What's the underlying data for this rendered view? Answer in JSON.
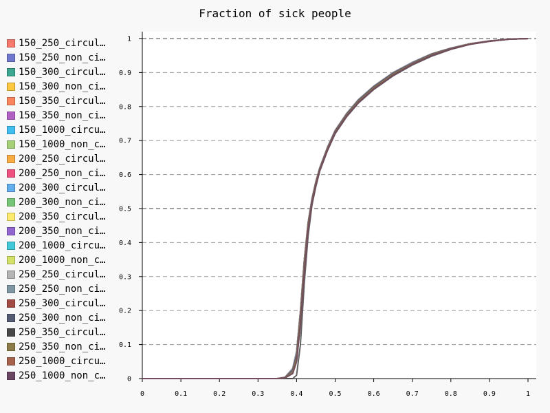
{
  "chart_data": {
    "type": "line",
    "title": "Fraction of sick people",
    "xlabel": "",
    "ylabel": "",
    "xlim": [
      0,
      1
    ],
    "ylim": [
      0,
      1
    ],
    "x_ticks": [
      "0",
      "0.1",
      "0.2",
      "0.3",
      "0.4",
      "0.5",
      "0.6",
      "0.7",
      "0.8",
      "0.9",
      "1"
    ],
    "y_ticks": [
      "0",
      "0.1",
      "0.2",
      "0.3",
      "0.4",
      "0.5",
      "0.6",
      "0.7",
      "0.8",
      "0.9",
      "1"
    ],
    "grid": "horizontal-dashed",
    "legend_position": "left",
    "x": [
      0,
      0.1,
      0.2,
      0.3,
      0.35,
      0.37,
      0.39,
      0.4,
      0.41,
      0.42,
      0.43,
      0.44,
      0.45,
      0.46,
      0.48,
      0.5,
      0.53,
      0.56,
      0.6,
      0.65,
      0.7,
      0.75,
      0.8,
      0.85,
      0.9,
      0.95,
      1.0
    ],
    "series": [
      {
        "name": "150_250_circul…",
        "color": "#f8796d",
        "values": [
          0,
          0,
          0,
          0,
          0,
          0.004,
          0.03,
          0.08,
          0.2,
          0.35,
          0.46,
          0.53,
          0.58,
          0.62,
          0.68,
          0.73,
          0.78,
          0.82,
          0.86,
          0.9,
          0.93,
          0.955,
          0.972,
          0.985,
          0.993,
          0.998,
          1
        ]
      },
      {
        "name": "150_250_non_ci…",
        "color": "#7078ce",
        "values": [
          0,
          0,
          0,
          0,
          0,
          0.004,
          0.03,
          0.08,
          0.2,
          0.35,
          0.46,
          0.53,
          0.58,
          0.62,
          0.68,
          0.73,
          0.78,
          0.82,
          0.86,
          0.9,
          0.93,
          0.955,
          0.972,
          0.985,
          0.993,
          0.998,
          1
        ]
      },
      {
        "name": "150_300_circul…",
        "color": "#3ca690",
        "values": [
          0,
          0,
          0,
          0,
          0,
          0.003,
          0.025,
          0.07,
          0.19,
          0.34,
          0.455,
          0.525,
          0.578,
          0.618,
          0.678,
          0.728,
          0.778,
          0.818,
          0.858,
          0.898,
          0.928,
          0.954,
          0.971,
          0.984,
          0.993,
          0.998,
          1
        ]
      },
      {
        "name": "150_300_non_ci…",
        "color": "#fdc93f",
        "values": [
          0,
          0,
          0,
          0,
          0,
          0.003,
          0.025,
          0.07,
          0.19,
          0.34,
          0.455,
          0.525,
          0.578,
          0.618,
          0.678,
          0.728,
          0.778,
          0.818,
          0.858,
          0.898,
          0.928,
          0.954,
          0.971,
          0.984,
          0.993,
          0.998,
          1
        ]
      },
      {
        "name": "150_350_circul…",
        "color": "#fd855e",
        "values": [
          0,
          0,
          0,
          0,
          0,
          0.003,
          0.02,
          0.06,
          0.18,
          0.33,
          0.45,
          0.52,
          0.575,
          0.615,
          0.675,
          0.725,
          0.775,
          0.815,
          0.855,
          0.895,
          0.926,
          0.952,
          0.97,
          0.984,
          0.992,
          0.998,
          1
        ]
      },
      {
        "name": "150_350_non_ci…",
        "color": "#b25fc4",
        "values": [
          0,
          0,
          0,
          0,
          0,
          0.003,
          0.02,
          0.06,
          0.18,
          0.33,
          0.45,
          0.52,
          0.575,
          0.615,
          0.675,
          0.725,
          0.775,
          0.815,
          0.855,
          0.895,
          0.926,
          0.952,
          0.97,
          0.984,
          0.992,
          0.998,
          1
        ]
      },
      {
        "name": "150_1000_circu…",
        "color": "#41bef1",
        "values": [
          0,
          0,
          0,
          0,
          0,
          0.002,
          0.015,
          0.05,
          0.16,
          0.31,
          0.44,
          0.515,
          0.57,
          0.612,
          0.672,
          0.722,
          0.772,
          0.812,
          0.852,
          0.892,
          0.924,
          0.95,
          0.969,
          0.983,
          0.992,
          0.998,
          1
        ]
      },
      {
        "name": "150_1000_non_c…",
        "color": "#a4d176",
        "values": [
          0,
          0,
          0,
          0,
          0,
          0.002,
          0.015,
          0.05,
          0.16,
          0.31,
          0.44,
          0.515,
          0.57,
          0.612,
          0.672,
          0.722,
          0.772,
          0.812,
          0.852,
          0.892,
          0.924,
          0.95,
          0.969,
          0.983,
          0.992,
          0.998,
          1
        ]
      },
      {
        "name": "200_250_circul…",
        "color": "#fbad44",
        "values": [
          0,
          0,
          0,
          0,
          0,
          0.004,
          0.03,
          0.08,
          0.2,
          0.35,
          0.46,
          0.53,
          0.58,
          0.62,
          0.68,
          0.73,
          0.78,
          0.82,
          0.86,
          0.9,
          0.93,
          0.955,
          0.972,
          0.985,
          0.993,
          0.998,
          1
        ]
      },
      {
        "name": "200_250_non_ci…",
        "color": "#ef5281",
        "values": [
          0,
          0,
          0,
          0,
          0,
          0.004,
          0.03,
          0.08,
          0.2,
          0.35,
          0.46,
          0.53,
          0.58,
          0.62,
          0.68,
          0.73,
          0.78,
          0.82,
          0.86,
          0.9,
          0.93,
          0.955,
          0.972,
          0.985,
          0.993,
          0.998,
          1
        ]
      },
      {
        "name": "200_300_circul…",
        "color": "#64adef",
        "values": [
          0,
          0,
          0,
          0,
          0,
          0.003,
          0.025,
          0.07,
          0.19,
          0.34,
          0.455,
          0.525,
          0.578,
          0.618,
          0.678,
          0.728,
          0.778,
          0.818,
          0.858,
          0.898,
          0.928,
          0.954,
          0.971,
          0.984,
          0.993,
          0.998,
          1
        ]
      },
      {
        "name": "200_300_non_ci…",
        "color": "#76c477",
        "values": [
          0,
          0,
          0,
          0,
          0,
          0.003,
          0.025,
          0.07,
          0.19,
          0.34,
          0.455,
          0.525,
          0.578,
          0.618,
          0.678,
          0.728,
          0.778,
          0.818,
          0.858,
          0.898,
          0.928,
          0.954,
          0.971,
          0.984,
          0.993,
          0.998,
          1
        ]
      },
      {
        "name": "200_350_circul…",
        "color": "#feeb6e",
        "values": [
          0,
          0,
          0,
          0,
          0,
          0.003,
          0.02,
          0.06,
          0.18,
          0.33,
          0.45,
          0.52,
          0.575,
          0.615,
          0.675,
          0.725,
          0.775,
          0.815,
          0.855,
          0.895,
          0.926,
          0.952,
          0.97,
          0.984,
          0.992,
          0.998,
          1
        ]
      },
      {
        "name": "200_350_non_ci…",
        "color": "#9266d0",
        "values": [
          0,
          0,
          0,
          0,
          0,
          0.003,
          0.02,
          0.06,
          0.18,
          0.33,
          0.45,
          0.52,
          0.575,
          0.615,
          0.675,
          0.725,
          0.775,
          0.815,
          0.855,
          0.895,
          0.926,
          0.952,
          0.97,
          0.984,
          0.992,
          0.998,
          1
        ]
      },
      {
        "name": "200_1000_circu…",
        "color": "#41cbda",
        "values": [
          0,
          0,
          0,
          0,
          0,
          0.002,
          0.015,
          0.05,
          0.16,
          0.31,
          0.44,
          0.515,
          0.57,
          0.612,
          0.672,
          0.722,
          0.772,
          0.812,
          0.852,
          0.892,
          0.924,
          0.95,
          0.969,
          0.983,
          0.992,
          0.998,
          1
        ]
      },
      {
        "name": "200_1000_non_c…",
        "color": "#d3e268",
        "values": [
          0,
          0,
          0,
          0,
          0,
          0.002,
          0.015,
          0.05,
          0.16,
          0.31,
          0.44,
          0.515,
          0.57,
          0.612,
          0.672,
          0.722,
          0.772,
          0.812,
          0.852,
          0.892,
          0.924,
          0.95,
          0.969,
          0.983,
          0.992,
          0.998,
          1
        ]
      },
      {
        "name": "250_250_circul…",
        "color": "#b5b5b5",
        "values": [
          0,
          0,
          0,
          0,
          0,
          0.004,
          0.03,
          0.08,
          0.2,
          0.35,
          0.46,
          0.53,
          0.58,
          0.62,
          0.68,
          0.73,
          0.78,
          0.82,
          0.86,
          0.9,
          0.93,
          0.955,
          0.972,
          0.985,
          0.993,
          0.998,
          1
        ]
      },
      {
        "name": "250_250_non_ci…",
        "color": "#7f97a3",
        "values": [
          0,
          0,
          0,
          0,
          0,
          0.004,
          0.03,
          0.08,
          0.2,
          0.35,
          0.46,
          0.53,
          0.58,
          0.62,
          0.68,
          0.73,
          0.78,
          0.82,
          0.86,
          0.9,
          0.93,
          0.955,
          0.972,
          0.985,
          0.993,
          0.998,
          1
        ]
      },
      {
        "name": "250_300_circul…",
        "color": "#a04a43",
        "values": [
          0,
          0,
          0,
          0,
          0,
          0.003,
          0.025,
          0.07,
          0.19,
          0.34,
          0.455,
          0.525,
          0.578,
          0.618,
          0.678,
          0.728,
          0.778,
          0.818,
          0.858,
          0.898,
          0.928,
          0.954,
          0.971,
          0.984,
          0.993,
          0.998,
          1
        ]
      },
      {
        "name": "250_300_non_ci…",
        "color": "#555a73",
        "values": [
          0,
          0,
          0,
          0,
          0,
          0.003,
          0.025,
          0.07,
          0.19,
          0.34,
          0.455,
          0.525,
          0.578,
          0.618,
          0.678,
          0.728,
          0.778,
          0.818,
          0.858,
          0.898,
          0.928,
          0.954,
          0.971,
          0.984,
          0.993,
          0.998,
          1
        ]
      },
      {
        "name": "250_350_circul…",
        "color": "#474747",
        "values": [
          0,
          0,
          0,
          0,
          0,
          0,
          0,
          0.01,
          0.1,
          0.28,
          0.42,
          0.51,
          0.565,
          0.61,
          0.67,
          0.72,
          0.77,
          0.81,
          0.85,
          0.89,
          0.922,
          0.948,
          0.968,
          0.983,
          0.992,
          0.998,
          1
        ]
      },
      {
        "name": "250_350_non_ci…",
        "color": "#8b7b47",
        "values": [
          0,
          0,
          0,
          0,
          0,
          0.003,
          0.02,
          0.06,
          0.18,
          0.33,
          0.45,
          0.52,
          0.575,
          0.615,
          0.675,
          0.725,
          0.775,
          0.815,
          0.855,
          0.895,
          0.926,
          0.952,
          0.97,
          0.984,
          0.992,
          0.998,
          1
        ]
      },
      {
        "name": "250_1000_circu…",
        "color": "#a5614c",
        "values": [
          0,
          0,
          0,
          0,
          0,
          0.002,
          0.015,
          0.05,
          0.16,
          0.31,
          0.44,
          0.515,
          0.57,
          0.612,
          0.672,
          0.722,
          0.772,
          0.812,
          0.852,
          0.892,
          0.924,
          0.95,
          0.969,
          0.983,
          0.992,
          0.998,
          1
        ]
      },
      {
        "name": "250_1000_non_c…",
        "color": "#6b4662",
        "values": [
          0,
          0,
          0,
          0,
          0,
          0.002,
          0.015,
          0.05,
          0.16,
          0.31,
          0.44,
          0.515,
          0.57,
          0.612,
          0.672,
          0.722,
          0.772,
          0.812,
          0.852,
          0.892,
          0.924,
          0.95,
          0.969,
          0.983,
          0.992,
          0.998,
          1
        ]
      }
    ]
  }
}
